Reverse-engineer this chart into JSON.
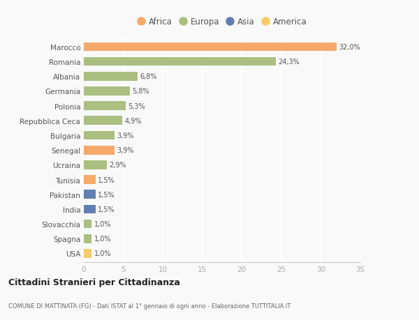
{
  "categories": [
    "Marocco",
    "Romania",
    "Albania",
    "Germania",
    "Polonia",
    "Repubblica Ceca",
    "Bulgaria",
    "Senegal",
    "Ucraina",
    "Tunisia",
    "Pakistan",
    "India",
    "Slovacchia",
    "Spagna",
    "USA"
  ],
  "values": [
    32.0,
    24.3,
    6.8,
    5.8,
    5.3,
    4.9,
    3.9,
    3.9,
    2.9,
    1.5,
    1.5,
    1.5,
    1.0,
    1.0,
    1.0
  ],
  "labels": [
    "32,0%",
    "24,3%",
    "6,8%",
    "5,8%",
    "5,3%",
    "4,9%",
    "3,9%",
    "3,9%",
    "2,9%",
    "1,5%",
    "1,5%",
    "1,5%",
    "1,0%",
    "1,0%",
    "1,0%"
  ],
  "continents": [
    "Africa",
    "Europa",
    "Europa",
    "Europa",
    "Europa",
    "Europa",
    "Europa",
    "Africa",
    "Europa",
    "Africa",
    "Asia",
    "Asia",
    "Europa",
    "Europa",
    "America"
  ],
  "colors": {
    "Africa": "#F5A96B",
    "Europa": "#AABF80",
    "Asia": "#6080B0",
    "America": "#F5CC6A"
  },
  "legend_order": [
    "Africa",
    "Europa",
    "Asia",
    "America"
  ],
  "xlim": [
    0,
    35
  ],
  "xticks": [
    0,
    5,
    10,
    15,
    20,
    25,
    30,
    35
  ],
  "title": "Cittadini Stranieri per Cittadinanza",
  "subtitle": "COMUNE DI MATTINATA (FG) - Dati ISTAT al 1° gennaio di ogni anno - Elaborazione TUTTITALIA.IT",
  "background_color": "#f9f9f9",
  "grid_color": "#ffffff",
  "bar_height": 0.6
}
